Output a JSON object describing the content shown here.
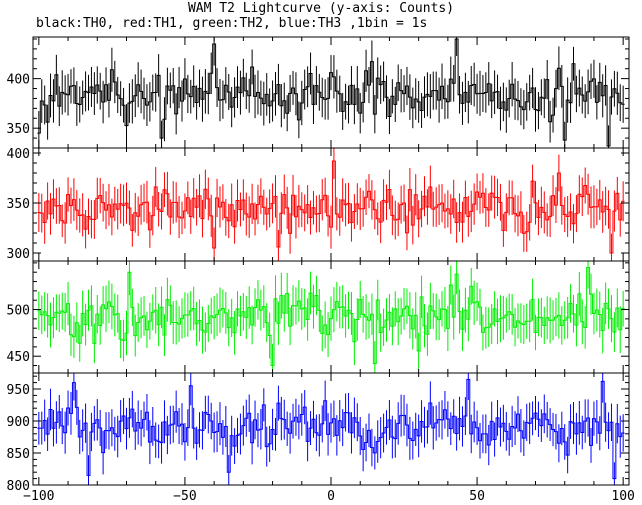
{
  "title": "WAM T2 Lightcurve (y-axis: Counts)",
  "subtitle": "black:TH0, red:TH1, green:TH2, blue:TH3 ,1bin = 1s",
  "chart_data": {
    "type": "line",
    "style": "step histogram with error bars, four stacked panels sharing the x-axis",
    "x_range": [
      -102,
      102
    ],
    "x_ticks": [
      -100,
      -50,
      0,
      50,
      100
    ],
    "bin_width": 1,
    "panels": [
      {
        "name": "TH0",
        "color": "#000000",
        "ylim": [
          330,
          442
        ],
        "y_ticks": [
          350,
          400
        ],
        "mean": 385,
        "sigma": 14,
        "err": 20,
        "highlights": [
          {
            "x": -40,
            "y": 435
          },
          {
            "x": 43,
            "y": 440
          },
          {
            "x": 83,
            "y": 415
          },
          {
            "x": 95,
            "y": 332
          },
          {
            "x": 80,
            "y": 338
          },
          {
            "x": -58,
            "y": 340
          },
          {
            "x": -100,
            "y": 345
          }
        ]
      },
      {
        "name": "TH1",
        "color": "#ff0000",
        "ylim": [
          292,
          405
        ],
        "y_ticks": [
          300,
          350,
          400
        ],
        "mean": 345,
        "sigma": 14,
        "err": 19,
        "highlights": [
          {
            "x": 1,
            "y": 392
          },
          {
            "x": -60,
            "y": 366
          },
          {
            "x": 78,
            "y": 380
          },
          {
            "x": 96,
            "y": 300
          },
          {
            "x": -40,
            "y": 305
          },
          {
            "x": -18,
            "y": 306
          }
        ]
      },
      {
        "name": "TH2",
        "color": "#00ee00",
        "ylim": [
          432,
          552
        ],
        "y_ticks": [
          450,
          500
        ],
        "mean": 492,
        "sigma": 16,
        "err": 22,
        "highlights": [
          {
            "x": -69,
            "y": 540
          },
          {
            "x": 43,
            "y": 538
          },
          {
            "x": 88,
            "y": 545
          },
          {
            "x": -20,
            "y": 440
          },
          {
            "x": 15,
            "y": 442
          }
        ]
      },
      {
        "name": "TH3",
        "color": "#0000ff",
        "ylim": [
          800,
          975
        ],
        "y_ticks": [
          800,
          850,
          900,
          950
        ],
        "mean": 890,
        "sigma": 22,
        "err": 30,
        "highlights": [
          {
            "x": -88,
            "y": 960
          },
          {
            "x": -48,
            "y": 955
          },
          {
            "x": 47,
            "y": 965
          },
          {
            "x": 93,
            "y": 962
          },
          {
            "x": -83,
            "y": 815
          },
          {
            "x": -35,
            "y": 820
          },
          {
            "x": 97,
            "y": 810
          }
        ]
      }
    ]
  }
}
